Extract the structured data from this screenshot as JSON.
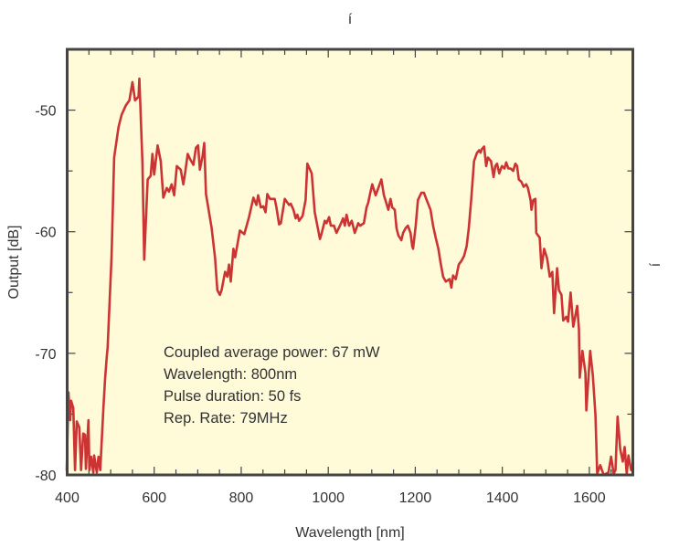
{
  "chart_data": {
    "type": "line",
    "title": "í",
    "right_label": "í",
    "xlabel": "Wavelength [nm]",
    "ylabel": "Output [dB]",
    "xlim": [
      400,
      1700
    ],
    "ylim": [
      -80,
      -45
    ],
    "x_ticks": [
      400,
      600,
      800,
      1000,
      1200,
      1400,
      1600
    ],
    "x_tick_labels": [
      "400",
      "600",
      "800",
      "1000",
      "1200",
      "1400",
      "1600"
    ],
    "x_minor_step": 50,
    "y_ticks": [
      -80,
      -70,
      -60,
      -50
    ],
    "y_tick_labels": [
      "-80",
      "-70",
      "-60",
      "-50"
    ],
    "y_minor_step": 5,
    "grid": false,
    "colors": {
      "background": "#fffad8",
      "line": "#cc3333",
      "frame": "#444444"
    },
    "annotations": [
      "Coupled average power: 67 mW",
      "Wavelength: 800nm",
      "Pulse duration: 50 fs",
      "Rep. Rate: 79MHz"
    ],
    "series": [
      {
        "name": "Output spectrum",
        "x": [
          399,
          403,
          407,
          409,
          414,
          418,
          422,
          428,
          432,
          437,
          441,
          443,
          449,
          451,
          455,
          460,
          462,
          468,
          472,
          476,
          483,
          487,
          491,
          493,
          502,
          508,
          518,
          525,
          535,
          543,
          550,
          556,
          564,
          566,
          573,
          577,
          585,
          592,
          596,
          600,
          608,
          615,
          621,
          629,
          634,
          640,
          646,
          652,
          661,
          667,
          671,
          677,
          682,
          690,
          696,
          701,
          705,
          711,
          715,
          719,
          732,
          740,
          745,
          751,
          755,
          763,
          768,
          772,
          776,
          782,
          786,
          797,
          807,
          818,
          828,
          835,
          839,
          845,
          851,
          856,
          860,
          866,
          870,
          877,
          881,
          887,
          891,
          900,
          906,
          910,
          914,
          920,
          925,
          929,
          933,
          941,
          948,
          952,
          962,
          969,
          981,
          985,
          992,
          996,
          1002,
          1006,
          1013,
          1019,
          1027,
          1034,
          1038,
          1042,
          1048,
          1054,
          1061,
          1069,
          1073,
          1082,
          1088,
          1092,
          1096,
          1101,
          1109,
          1115,
          1122,
          1128,
          1134,
          1138,
          1143,
          1147,
          1153,
          1157,
          1161,
          1168,
          1172,
          1178,
          1183,
          1189,
          1193,
          1195,
          1201,
          1206,
          1214,
          1220,
          1224,
          1235,
          1241,
          1247,
          1253,
          1258,
          1264,
          1270,
          1279,
          1283,
          1287,
          1293,
          1300,
          1306,
          1312,
          1318,
          1323,
          1329,
          1335,
          1342,
          1347,
          1350,
          1353,
          1358,
          1363,
          1367,
          1374,
          1380,
          1384,
          1388,
          1393,
          1399,
          1405,
          1409,
          1414,
          1419,
          1425,
          1430,
          1434,
          1438,
          1444,
          1449,
          1455,
          1459,
          1465,
          1467,
          1471,
          1476,
          1478,
          1482,
          1486,
          1490,
          1496,
          1503,
          1509,
          1515,
          1519,
          1526,
          1530,
          1536,
          1540,
          1547,
          1551,
          1557,
          1563,
          1572,
          1576,
          1578,
          1584,
          1591,
          1593,
          1602,
          1608,
          1614,
          1618,
          1625,
          1633,
          1644,
          1650,
          1656,
          1660,
          1665,
          1671,
          1677,
          1681,
          1686,
          1690,
          1696
        ],
        "y": [
          -79.6,
          -73.2,
          -75.5,
          -73.9,
          -74.5,
          -79.6,
          -75.6,
          -76.1,
          -79.6,
          -76.6,
          -76.7,
          -79.5,
          -75.5,
          -79.6,
          -78.5,
          -79.8,
          -78.4,
          -79.8,
          -78.5,
          -79.6,
          -74.7,
          -72.2,
          -70.3,
          -69.5,
          -62.0,
          -53.9,
          -51.4,
          -50.4,
          -49.6,
          -49.2,
          -47.7,
          -49.2,
          -48.9,
          -47.4,
          -54.4,
          -62.3,
          -55.7,
          -55.4,
          -53.6,
          -55.3,
          -52.9,
          -54.2,
          -57.2,
          -56.4,
          -56.7,
          -56.1,
          -57.0,
          -54.6,
          -54.9,
          -56.1,
          -55.2,
          -53.6,
          -54.0,
          -54.5,
          -53.1,
          -52.9,
          -54.9,
          -53.8,
          -52.7,
          -56.9,
          -59.7,
          -62.2,
          -64.8,
          -65.2,
          -64.8,
          -63.3,
          -63.7,
          -62.7,
          -64.1,
          -61.4,
          -62.1,
          -59.9,
          -60.2,
          -58.8,
          -57.2,
          -57.8,
          -57.0,
          -58.0,
          -57.9,
          -58.4,
          -56.9,
          -57.3,
          -57.3,
          -57.3,
          -58.0,
          -59.4,
          -59.3,
          -57.3,
          -57.6,
          -57.8,
          -57.7,
          -58.2,
          -58.9,
          -58.6,
          -59.1,
          -58.7,
          -57.4,
          -54.4,
          -55.2,
          -58.4,
          -60.6,
          -60.1,
          -59.1,
          -59.3,
          -58.8,
          -59.5,
          -59.5,
          -60.1,
          -59.5,
          -58.9,
          -59.5,
          -58.6,
          -59.5,
          -59.1,
          -60.1,
          -59.3,
          -59.5,
          -59.3,
          -58.0,
          -57.6,
          -56.9,
          -56.1,
          -57.0,
          -56.4,
          -55.7,
          -57.0,
          -57.7,
          -58.2,
          -57.3,
          -58.0,
          -58.2,
          -59.7,
          -60.3,
          -60.7,
          -60.1,
          -59.7,
          -59.5,
          -60.1,
          -61.2,
          -61.4,
          -59.5,
          -57.4,
          -56.8,
          -56.8,
          -57.2,
          -58.2,
          -59.5,
          -60.5,
          -61.4,
          -62.5,
          -63.7,
          -64.1,
          -63.9,
          -64.6,
          -63.6,
          -63.9,
          -62.7,
          -62.4,
          -62.0,
          -61.2,
          -59.7,
          -57.2,
          -54.2,
          -53.5,
          -53.3,
          -53.5,
          -53.2,
          -53.0,
          -54.6,
          -53.9,
          -54.2,
          -55.5,
          -54.6,
          -54.4,
          -55.2,
          -54.6,
          -54.8,
          -54.3,
          -54.8,
          -54.8,
          -55.0,
          -54.4,
          -54.6,
          -55.7,
          -55.9,
          -56.3,
          -56.1,
          -56.4,
          -57.4,
          -58.2,
          -57.4,
          -57.3,
          -60.1,
          -60.3,
          -60.5,
          -63.0,
          -61.4,
          -62.2,
          -63.7,
          -63.3,
          -66.7,
          -63.0,
          -64.8,
          -65.2,
          -67.3,
          -67.0,
          -67.4,
          -65.0,
          -67.8,
          -66.1,
          -68.0,
          -72.0,
          -69.8,
          -71.6,
          -74.7,
          -69.8,
          -71.8,
          -75.1,
          -79.9,
          -79.2,
          -80.0,
          -79.8,
          -78.5,
          -79.9,
          -79.6,
          -75.2,
          -77.9,
          -78.9,
          -77.7,
          -79.9,
          -78.4,
          -79.6
        ]
      }
    ]
  }
}
